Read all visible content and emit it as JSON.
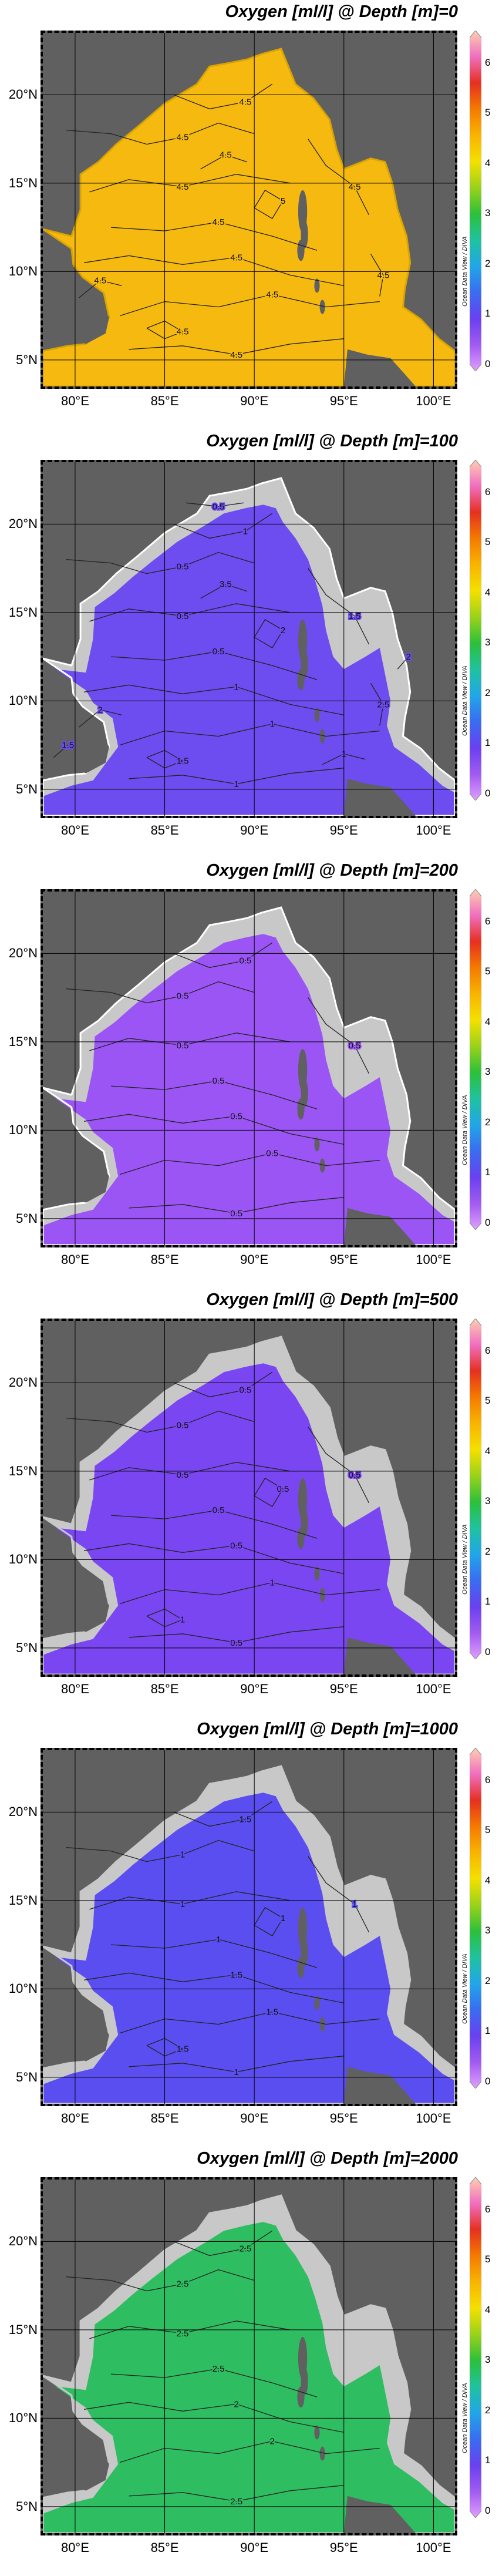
{
  "colorbar": {
    "ticks": [
      "0",
      "1",
      "2",
      "3",
      "4",
      "5",
      "6"
    ],
    "min": 0,
    "max": 6.5,
    "stops": [
      "#e0a0ff",
      "#a25bf0",
      "#6a40f0",
      "#3a6cf0",
      "#21a6e8",
      "#1fc2a0",
      "#2cc03a",
      "#9ad21a",
      "#f4e000",
      "#f8b400",
      "#f47a00",
      "#e63020",
      "#f06ec0",
      "#ffd0b0"
    ]
  },
  "axes": {
    "lat_labels": [
      "20°N",
      "15°N",
      "10°N",
      "5°N"
    ],
    "lon_labels": [
      "80°E",
      "85°E",
      "90°E",
      "95°E",
      "100°E"
    ]
  },
  "credit": "Ocean Data View / DIVA",
  "panels": [
    {
      "title": "Oxygen [ml/l] @ Depth [m]=0",
      "fill": "#f6b90f",
      "coast": "#d9a400",
      "contours": [
        "4.5",
        "4.5",
        "4.5",
        "4.5",
        "4.5",
        "4.5",
        "4.5",
        "4.5",
        "4.5",
        "5",
        "4.5",
        "4.5",
        "4.5"
      ],
      "shelf": false
    },
    {
      "title": "Oxygen [ml/l] @ Depth [m]=100",
      "fill": "#6d4cf0",
      "coast": "#ffffff",
      "contours": [
        "0.5",
        "0.5",
        "0.5",
        "1",
        "1",
        "1",
        "1",
        "1.5",
        "1.5",
        "2",
        "2.5",
        "2",
        "3.5",
        "1",
        "0.5",
        "1.5",
        "2"
      ],
      "shelf": true
    },
    {
      "title": "Oxygen [ml/l] @ Depth [m]=200",
      "fill": "#9b55f5",
      "coast": "#ffffff",
      "contours": [
        "0.5",
        "0.5",
        "0.5",
        "0.5",
        "0.5",
        "0.5",
        "0.5",
        "0.5"
      ],
      "shelf": true
    },
    {
      "title": "Oxygen [ml/l] @ Depth [m]=500",
      "fill": "#7a46f2",
      "coast": "#c8c8c8",
      "contours": [
        "0.5",
        "0.5",
        "0.5",
        "0.5",
        "1",
        "0.5",
        "0.5",
        "0.5",
        "1",
        "0.5"
      ],
      "shelf": true
    },
    {
      "title": "Oxygen [ml/l] @ Depth [m]=1000",
      "fill": "#5b4ef0",
      "coast": "#c8c8c8",
      "contours": [
        "1",
        "1",
        "1",
        "1.5",
        "1.5",
        "1",
        "1.5",
        "1",
        "1.5",
        "1"
      ],
      "shelf": true
    },
    {
      "title": "Oxygen [ml/l] @ Depth [m]=2000",
      "fill": "#2fbd62",
      "coast": "#c8c8c8",
      "contours": [
        "2.5",
        "2.5",
        "2.5",
        "2",
        "2",
        "2.5",
        "2.5"
      ],
      "shelf": true
    }
  ]
}
